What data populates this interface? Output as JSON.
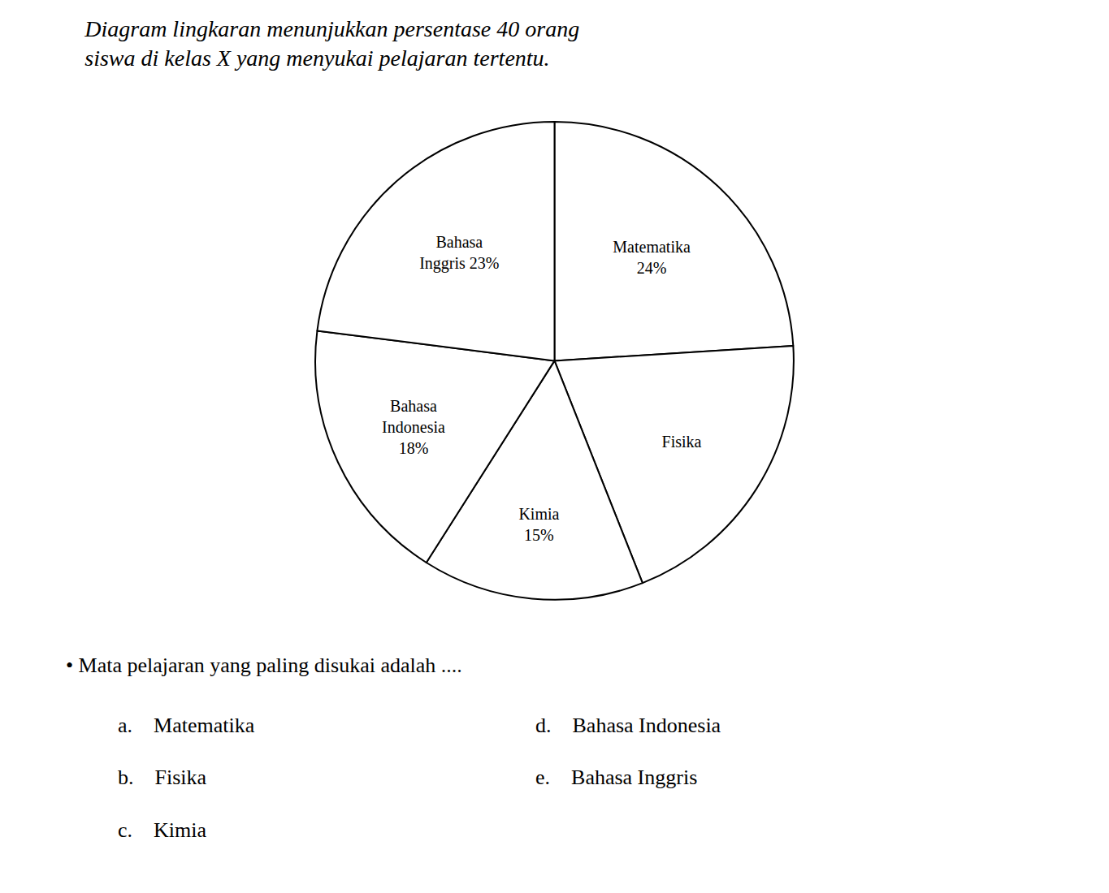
{
  "chart_data": {
    "type": "pie",
    "title": "Diagram lingkaran menunjukkan persentase 40 orang\nsiswa di kelas X yang menyukai pelajaran tertentu.",
    "categories": [
      "Matematika\n24%",
      "Fisika",
      "Kimia\n15%",
      "Bahasa\nIndonesia\n18%",
      "Bahasa\nInggris 23%"
    ],
    "values": [
      24,
      20,
      15,
      18,
      23
    ],
    "colors": [
      "#ffffff",
      "#ffffff",
      "#ffffff",
      "#ffffff",
      "#ffffff"
    ],
    "annotations": [
      "• Mata pelajaran yang paling disukai adalah ....",
      "a.    Matematika",
      "b.    Fisika",
      "c.    Kimia",
      "d.    Bahasa Indonesia",
      "e.    Bahasa Inggris"
    ]
  }
}
